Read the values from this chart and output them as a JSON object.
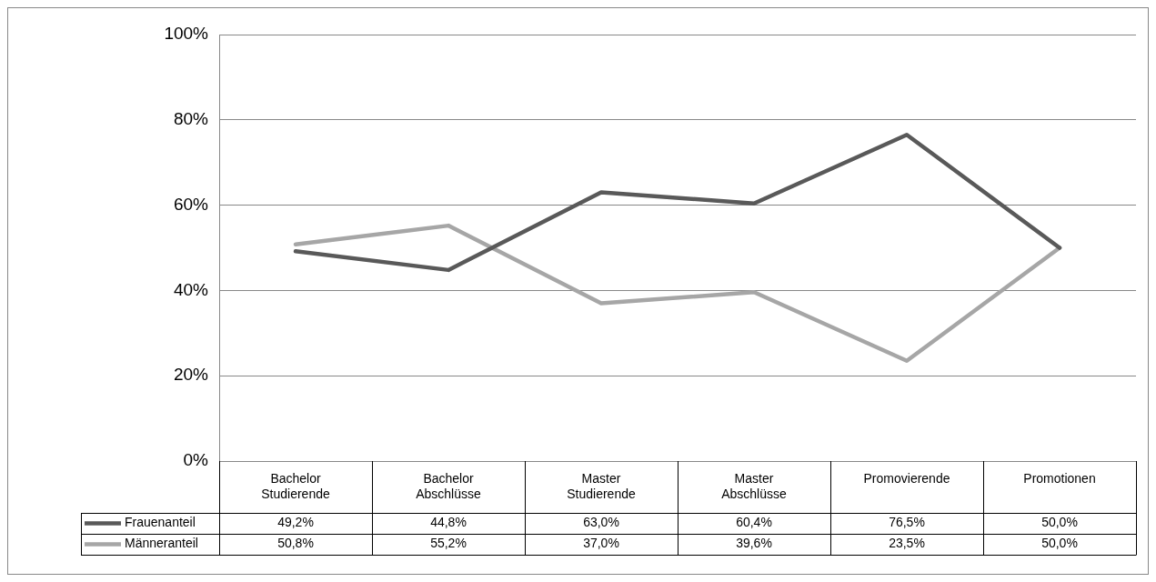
{
  "chart_data": {
    "type": "line",
    "categories": [
      "Bachelor Studierende",
      "Bachelor Abschlüsse",
      "Master Studierende",
      "Master Abschlüsse",
      "Promovierende",
      "Promotionen"
    ],
    "series": [
      {
        "name": "Frauenanteil",
        "color": "#595959",
        "values": [
          49.2,
          44.8,
          63.0,
          60.4,
          76.5,
          50.0
        ],
        "value_labels": [
          "49,2%",
          "44,8%",
          "63,0%",
          "60,4%",
          "76,5%",
          "50,0%"
        ]
      },
      {
        "name": "Männeranteil",
        "color": "#a6a6a6",
        "values": [
          50.8,
          55.2,
          37.0,
          39.6,
          23.5,
          50.0
        ],
        "value_labels": [
          "50,8%",
          "55,2%",
          "37,0%",
          "39,6%",
          "23,5%",
          "50,0%"
        ]
      }
    ],
    "ylim": [
      0,
      100
    ],
    "yticks": [
      {
        "value": 0,
        "label": "0%"
      },
      {
        "value": 20,
        "label": "20%"
      },
      {
        "value": 40,
        "label": "40%"
      },
      {
        "value": 60,
        "label": "60%"
      },
      {
        "value": 80,
        "label": "80%"
      },
      {
        "value": 100,
        "label": "100%"
      }
    ],
    "grid": "y",
    "legend": "bottom",
    "marker": "none",
    "line_style": "solid"
  }
}
